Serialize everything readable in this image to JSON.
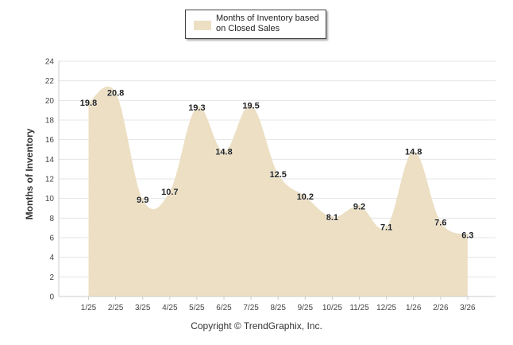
{
  "chart_data": {
    "type": "area",
    "categories": [
      "1/25",
      "2/25",
      "3/25",
      "4/25",
      "5/25",
      "6/25",
      "7/25",
      "8/25",
      "9/25",
      "10/25",
      "11/25",
      "12/25",
      "1/26",
      "2/26",
      "3/26"
    ],
    "series": [
      {
        "name": "Months of Inventory based on Closed Sales",
        "values": [
          19.8,
          20.8,
          9.9,
          10.7,
          19.3,
          14.8,
          19.5,
          12.5,
          10.2,
          8.1,
          9.2,
          7.1,
          14.8,
          7.6,
          6.3
        ]
      }
    ],
    "data_labels": [
      "19.8",
      "20.8",
      "9.9",
      "10.7",
      "19.3",
      "14.8",
      "19.5",
      "12.5",
      "10.2",
      "8.1",
      "9.2",
      "7.1",
      "14.8",
      "7.6",
      "6.3"
    ],
    "title": "",
    "xlabel": "",
    "ylabel": "Months of Inventory",
    "ylim": [
      0,
      24
    ],
    "yticks": [
      "0",
      "2",
      "4",
      "6",
      "8",
      "10",
      "12",
      "14",
      "16",
      "18",
      "20",
      "22",
      "24"
    ],
    "grid": true,
    "legend_position": "top-center"
  },
  "legend": {
    "label": "Months of Inventory based on Closed Sales"
  },
  "colors": {
    "area_fill": "#ecdfc3",
    "grid": "#e4e4e4",
    "axis": "#cccccc",
    "text": "#222222"
  },
  "footer": {
    "copyright": "Copyright © TrendGraphix, Inc."
  }
}
